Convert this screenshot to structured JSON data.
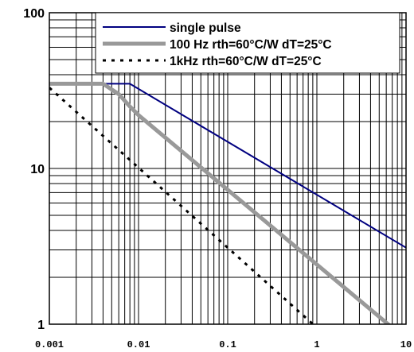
{
  "chart_data": {
    "type": "line",
    "title": "",
    "xlabel": "",
    "ylabel": "",
    "x_scale": "log",
    "y_scale": "log",
    "xlim": [
      0.001,
      10
    ],
    "ylim": [
      1,
      100
    ],
    "grid": true,
    "legend_position": "top-right",
    "x_tick_labels": [
      "0.001",
      "0.01",
      "0.1",
      "1",
      "10"
    ],
    "y_tick_labels": [
      "1",
      "10",
      "100"
    ],
    "series": [
      {
        "name": "single pulse",
        "style": "solid",
        "color": "#000080",
        "points": [
          [
            0.001,
            35
          ],
          [
            0.008,
            35
          ],
          [
            10,
            3.1
          ]
        ]
      },
      {
        "name": "100 Hz rth=60°C/W dT=25°C",
        "style": "solid",
        "color": "#999999",
        "points": [
          [
            0.001,
            35
          ],
          [
            0.004,
            35
          ],
          [
            0.006,
            30
          ],
          [
            0.008,
            25
          ],
          [
            0.01,
            22
          ],
          [
            7,
            0.95
          ]
        ]
      },
      {
        "name": "1kHz    rth=60°C/W dT=25°C",
        "style": "dashed",
        "color": "#000000",
        "points": [
          [
            0.001,
            33
          ],
          [
            1,
            0.95
          ]
        ]
      }
    ]
  }
}
